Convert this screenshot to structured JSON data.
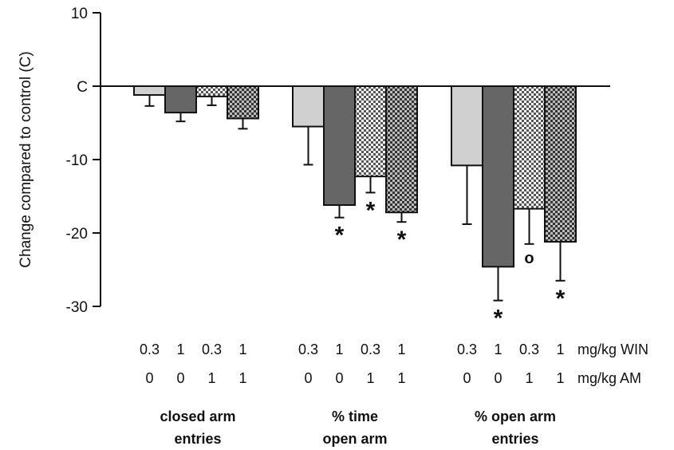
{
  "chart_data": {
    "type": "bar",
    "ylabel": "Change compared to control (C)",
    "ylim": [
      -30,
      10
    ],
    "yticks": [
      {
        "value": 10,
        "label": "10"
      },
      {
        "value": 0,
        "label": "C"
      },
      {
        "value": -10,
        "label": "-10"
      },
      {
        "value": -20,
        "label": "-20"
      },
      {
        "value": -30,
        "label": "-30"
      }
    ],
    "groups": [
      {
        "label_lines": [
          "closed arm",
          "entries"
        ]
      },
      {
        "label_lines": [
          "% time",
          "open arm"
        ]
      },
      {
        "label_lines": [
          "% open arm",
          "entries"
        ]
      }
    ],
    "dose_rows": [
      {
        "values": [
          "0.3",
          "1",
          "0.3",
          "1"
        ],
        "unit": "mg/kg WIN"
      },
      {
        "values": [
          "0",
          "0",
          "1",
          "1"
        ],
        "unit": "mg/kg AM"
      }
    ],
    "series": [
      {
        "win": "0.3",
        "am": "0",
        "fill": "#d0d0d0",
        "pattern": "solid",
        "values": [
          -1.2,
          -5.5,
          -10.8
        ],
        "errors": [
          1.5,
          5.2,
          8.0
        ],
        "markers": [
          "",
          "",
          ""
        ]
      },
      {
        "win": "1",
        "am": "0",
        "fill": "#666666",
        "pattern": "solid",
        "values": [
          -3.6,
          -16.2,
          -24.6
        ],
        "errors": [
          1.2,
          1.7,
          4.6
        ],
        "markers": [
          "",
          "*",
          "*"
        ]
      },
      {
        "win": "0.3",
        "am": "1",
        "fill": "#ffffff",
        "pattern": "checker-light",
        "values": [
          -1.4,
          -12.3,
          -16.7
        ],
        "errors": [
          1.2,
          2.2,
          4.8
        ],
        "markers": [
          "",
          "*",
          "o"
        ]
      },
      {
        "win": "1",
        "am": "1",
        "fill": "#888888",
        "pattern": "checker-dark",
        "values": [
          -4.4,
          -17.2,
          -21.2
        ],
        "errors": [
          1.4,
          1.3,
          5.3
        ],
        "markers": [
          "",
          "*",
          "*"
        ]
      }
    ]
  }
}
